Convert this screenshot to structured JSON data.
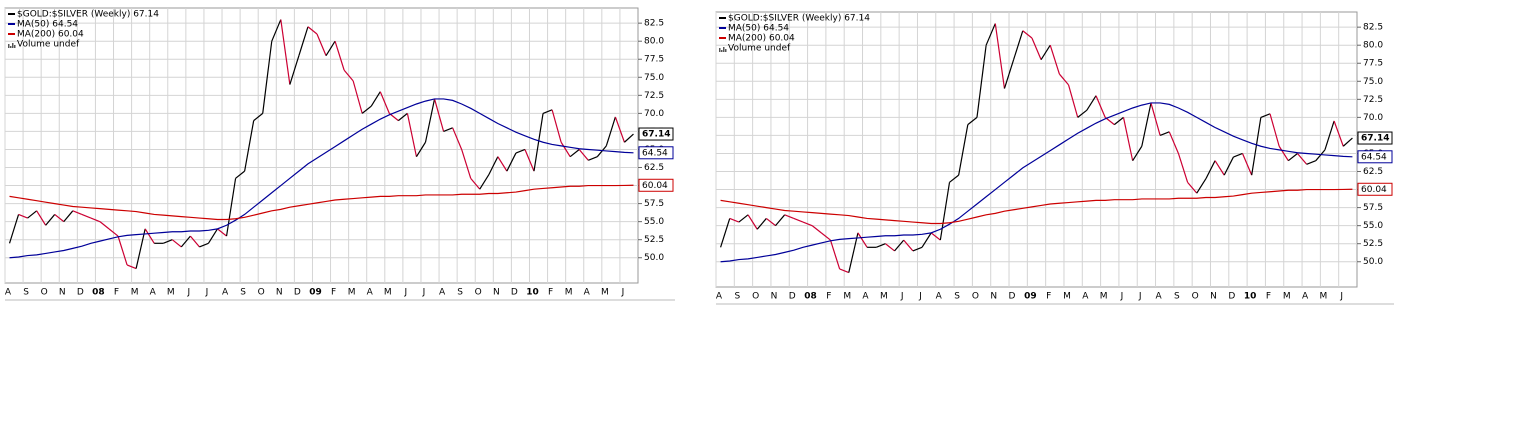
{
  "chart_data": [
    {
      "type": "line",
      "y_axis_side": "right",
      "grid": true,
      "volume_label": "Volume undef",
      "ylim": [
        46.5,
        84.6
      ],
      "yticks": [
        {
          "value": 50,
          "label": "50.0"
        },
        {
          "value": 52.5,
          "label": "52.5"
        },
        {
          "value": 55,
          "label": "55.0"
        },
        {
          "value": 57.5,
          "label": "57.5"
        },
        {
          "value": 60,
          "label": "60.0"
        },
        {
          "value": 62.5,
          "label": "62.5"
        },
        {
          "value": 65,
          "label": "65.0"
        },
        {
          "value": 67.5,
          "label": "67.5"
        },
        {
          "value": 70,
          "label": "70.0"
        },
        {
          "value": 72.5,
          "label": "72.5"
        },
        {
          "value": 75,
          "label": "75.0"
        },
        {
          "value": 77.5,
          "label": "77.5"
        },
        {
          "value": 80,
          "label": "80.0"
        },
        {
          "value": 82.5,
          "label": "82.5"
        }
      ],
      "categories": [
        "A",
        null,
        "S",
        null,
        "O",
        null,
        "N",
        null,
        "D",
        null,
        "08",
        null,
        "F",
        null,
        "M",
        null,
        "A",
        null,
        "M",
        null,
        "J",
        null,
        "J",
        null,
        "A",
        null,
        "S",
        null,
        "O",
        null,
        "N",
        null,
        "D",
        null,
        "09",
        null,
        "F",
        null,
        "M",
        null,
        "A",
        null,
        "M",
        null,
        "J",
        null,
        "J",
        null,
        "A",
        null,
        "S",
        null,
        "O",
        null,
        "N",
        null,
        "D",
        null,
        "10",
        null,
        "F",
        null,
        "M",
        null,
        "A",
        null,
        "M",
        null,
        "J",
        null
      ],
      "series": [
        {
          "name": "$GOLD:$SILVER (Weekly) 67.14",
          "color": "#000000",
          "down_color": "#cc0033",
          "values": [
            52,
            56,
            55.5,
            56.5,
            54.5,
            56,
            55,
            56.5,
            56,
            55.5,
            55,
            54,
            53,
            49,
            48.5,
            54,
            52,
            52,
            52.5,
            51.5,
            53,
            51.5,
            52,
            54,
            53,
            61,
            62,
            69,
            70,
            80,
            83,
            74,
            78,
            82,
            81,
            78,
            80,
            76,
            74.5,
            70,
            71,
            73,
            70,
            69,
            70,
            64,
            66,
            72,
            67.5,
            68,
            65,
            61,
            59.5,
            61.5,
            64,
            62,
            64.5,
            65,
            62,
            70,
            70.5,
            66,
            64,
            65,
            63.5,
            64,
            65.5,
            69.5,
            66,
            67.14
          ]
        },
        {
          "name": "MA(50) 64.54",
          "color": "#000099",
          "values": [
            50.0,
            50.1,
            50.3,
            50.4,
            50.6,
            50.8,
            51.0,
            51.3,
            51.6,
            52.0,
            52.3,
            52.6,
            52.9,
            53.1,
            53.2,
            53.3,
            53.4,
            53.5,
            53.6,
            53.6,
            53.7,
            53.7,
            53.8,
            54.0,
            54.5,
            55.2,
            56.0,
            57.0,
            58.0,
            59.0,
            60.0,
            61.0,
            62.0,
            63.0,
            63.8,
            64.6,
            65.4,
            66.2,
            67.0,
            67.8,
            68.5,
            69.2,
            69.8,
            70.3,
            70.8,
            71.3,
            71.7,
            72.0,
            72.0,
            71.8,
            71.3,
            70.7,
            70.0,
            69.3,
            68.6,
            68.0,
            67.4,
            66.9,
            66.4,
            66.0,
            65.7,
            65.5,
            65.3,
            65.1,
            65.0,
            64.9,
            64.8,
            64.7,
            64.6,
            64.54
          ]
        },
        {
          "name": "MA(200) 60.04",
          "color": "#cc0000",
          "values": [
            58.5,
            58.3,
            58.1,
            57.9,
            57.7,
            57.5,
            57.3,
            57.1,
            57.0,
            56.9,
            56.8,
            56.7,
            56.6,
            56.5,
            56.4,
            56.2,
            56.0,
            55.9,
            55.8,
            55.7,
            55.6,
            55.5,
            55.4,
            55.3,
            55.3,
            55.4,
            55.6,
            55.9,
            56.2,
            56.5,
            56.7,
            57.0,
            57.2,
            57.4,
            57.6,
            57.8,
            58.0,
            58.1,
            58.2,
            58.3,
            58.4,
            58.5,
            58.5,
            58.6,
            58.6,
            58.6,
            58.7,
            58.7,
            58.7,
            58.7,
            58.8,
            58.8,
            58.8,
            58.9,
            58.9,
            59.0,
            59.1,
            59.3,
            59.5,
            59.6,
            59.7,
            59.8,
            59.9,
            59.9,
            60.0,
            60.0,
            60.0,
            60.0,
            60.02,
            60.04
          ]
        }
      ]
    },
    {
      "type": "line",
      "y_axis_side": "right",
      "grid": true,
      "volume_label": "Volume undef",
      "ylim": [
        46.5,
        84.6
      ],
      "yticks": [
        {
          "value": 50,
          "label": "50.0"
        },
        {
          "value": 52.5,
          "label": "52.5"
        },
        {
          "value": 55,
          "label": "55.0"
        },
        {
          "value": 57.5,
          "label": "57.5"
        },
        {
          "value": 60,
          "label": "60.0"
        },
        {
          "value": 62.5,
          "label": "62.5"
        },
        {
          "value": 65,
          "label": "65.0"
        },
        {
          "value": 67.5,
          "label": "67.5"
        },
        {
          "value": 70,
          "label": "70.0"
        },
        {
          "value": 72.5,
          "label": "72.5"
        },
        {
          "value": 75,
          "label": "75.0"
        },
        {
          "value": 77.5,
          "label": "77.5"
        },
        {
          "value": 80,
          "label": "80.0"
        },
        {
          "value": 82.5,
          "label": "82.5"
        }
      ],
      "categories": [
        "A",
        null,
        "S",
        null,
        "O",
        null,
        "N",
        null,
        "D",
        null,
        "08",
        null,
        "F",
        null,
        "M",
        null,
        "A",
        null,
        "M",
        null,
        "J",
        null,
        "J",
        null,
        "A",
        null,
        "S",
        null,
        "O",
        null,
        "N",
        null,
        "D",
        null,
        "09",
        null,
        "F",
        null,
        "M",
        null,
        "A",
        null,
        "M",
        null,
        "J",
        null,
        "J",
        null,
        "A",
        null,
        "S",
        null,
        "O",
        null,
        "N",
        null,
        "D",
        null,
        "10",
        null,
        "F",
        null,
        "M",
        null,
        "A",
        null,
        "M",
        null,
        "J",
        null
      ],
      "series": [
        {
          "name": "$GOLD:$SILVER (Weekly) 67.14",
          "color": "#000000",
          "down_color": "#cc0033",
          "values": [
            52,
            56,
            55.5,
            56.5,
            54.5,
            56,
            55,
            56.5,
            56,
            55.5,
            55,
            54,
            53,
            49,
            48.5,
            54,
            52,
            52,
            52.5,
            51.5,
            53,
            51.5,
            52,
            54,
            53,
            61,
            62,
            69,
            70,
            80,
            83,
            74,
            78,
            82,
            81,
            78,
            80,
            76,
            74.5,
            70,
            71,
            73,
            70,
            69,
            70,
            64,
            66,
            72,
            67.5,
            68,
            65,
            61,
            59.5,
            61.5,
            64,
            62,
            64.5,
            65,
            62,
            70,
            70.5,
            66,
            64,
            65,
            63.5,
            64,
            65.5,
            69.5,
            66,
            67.14
          ]
        },
        {
          "name": "MA(50) 64.54",
          "color": "#000099",
          "values": [
            50.0,
            50.1,
            50.3,
            50.4,
            50.6,
            50.8,
            51.0,
            51.3,
            51.6,
            52.0,
            52.3,
            52.6,
            52.9,
            53.1,
            53.2,
            53.3,
            53.4,
            53.5,
            53.6,
            53.6,
            53.7,
            53.7,
            53.8,
            54.0,
            54.5,
            55.2,
            56.0,
            57.0,
            58.0,
            59.0,
            60.0,
            61.0,
            62.0,
            63.0,
            63.8,
            64.6,
            65.4,
            66.2,
            67.0,
            67.8,
            68.5,
            69.2,
            69.8,
            70.3,
            70.8,
            71.3,
            71.7,
            72.0,
            72.0,
            71.8,
            71.3,
            70.7,
            70.0,
            69.3,
            68.6,
            68.0,
            67.4,
            66.9,
            66.4,
            66.0,
            65.7,
            65.5,
            65.3,
            65.1,
            65.0,
            64.9,
            64.8,
            64.7,
            64.6,
            64.54
          ]
        },
        {
          "name": "MA(200) 60.04",
          "color": "#cc0000",
          "values": [
            58.5,
            58.3,
            58.1,
            57.9,
            57.7,
            57.5,
            57.3,
            57.1,
            57.0,
            56.9,
            56.8,
            56.7,
            56.6,
            56.5,
            56.4,
            56.2,
            56.0,
            55.9,
            55.8,
            55.7,
            55.6,
            55.5,
            55.4,
            55.3,
            55.3,
            55.4,
            55.6,
            55.9,
            56.2,
            56.5,
            56.7,
            57.0,
            57.2,
            57.4,
            57.6,
            57.8,
            58.0,
            58.1,
            58.2,
            58.3,
            58.4,
            58.5,
            58.5,
            58.6,
            58.6,
            58.6,
            58.7,
            58.7,
            58.7,
            58.7,
            58.8,
            58.8,
            58.8,
            58.9,
            58.9,
            59.0,
            59.1,
            59.3,
            59.5,
            59.6,
            59.7,
            59.8,
            59.9,
            59.9,
            60.0,
            60.0,
            60.0,
            60.0,
            60.02,
            60.04
          ]
        }
      ]
    }
  ]
}
